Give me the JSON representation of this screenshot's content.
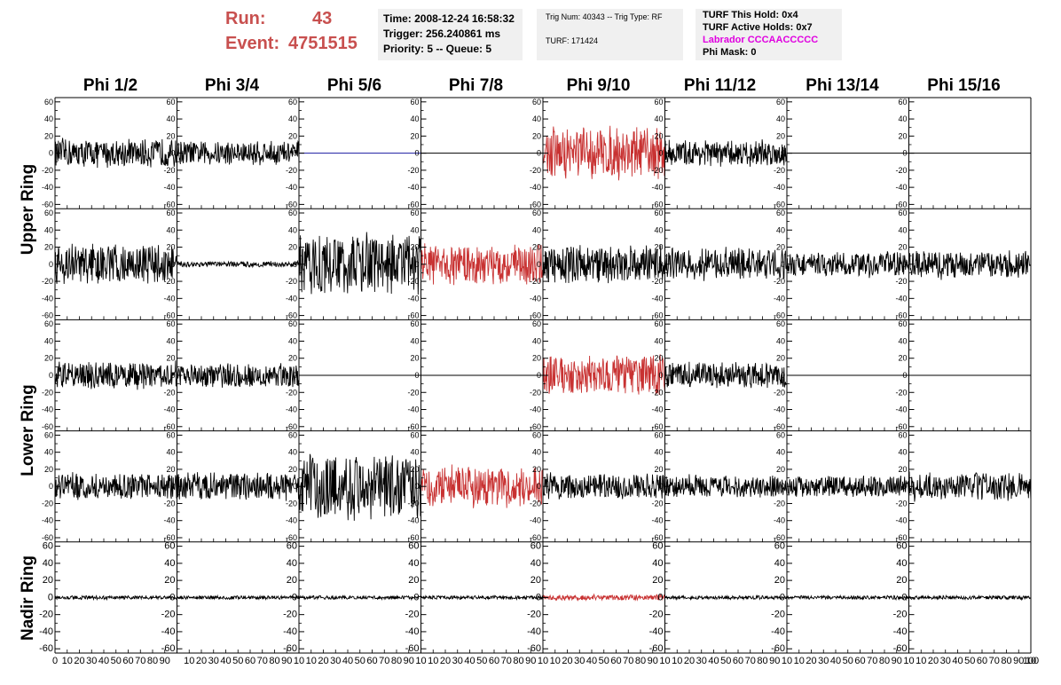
{
  "header": {
    "run_label": "Run:",
    "run_value": "43",
    "event_label": "Event:",
    "event_value": "4751515",
    "time": "Time: 2008-12-24 16:58:32",
    "trigger": "Trigger: 256.240861 ms",
    "priority": "Priority: 5 -- Queue: 5",
    "trig_num": "Trig Num: 40343 -- Trig Type: RF",
    "turf": "TURF: 171424",
    "turf_this_hold": "TURF This Hold: 0x4",
    "turf_active_holds": "TURF Active Holds: 0x7",
    "labrador": "Labrador CCCAACCCCC",
    "phi_mask": "Phi Mask: 0"
  },
  "colors": {
    "run_text": "#c8504f",
    "labrador_text": "#e000e0",
    "trace_normal": "#000000",
    "trace_highlight": "#c83232",
    "trace_flat_blue": "#1a1aa0",
    "panel_bg": "#f0f0f0"
  },
  "columns": [
    "Phi 1/2",
    "Phi 3/4",
    "Phi 5/6",
    "Phi 7/8",
    "Phi 9/10",
    "Phi 11/12",
    "Phi 13/14",
    "Phi 15/16"
  ],
  "row_labels": [
    "Upper Ring",
    "Lower Ring",
    "Nadir Ring"
  ],
  "chart_data": {
    "type": "line",
    "title": "",
    "xlabel": "",
    "ylabel": "",
    "xlim": [
      0,
      100
    ],
    "ylim": [
      -65,
      65
    ],
    "y_ticks": [
      -60,
      -40,
      -20,
      0,
      20,
      40,
      60
    ],
    "x_tick_labels": [
      "0",
      "10",
      "20",
      "30",
      "40",
      "50",
      "60",
      "70",
      "80",
      "90",
      "100"
    ],
    "x_tick_labels_mid": [
      "10",
      "20",
      "30",
      "40",
      "50",
      "60",
      "70",
      "80",
      "90",
      "10"
    ],
    "grid": false,
    "panels": [
      [
        {
          "amp": 15,
          "color": "black"
        },
        {
          "amp": 13,
          "color": "black"
        },
        {
          "amp": 0,
          "color": "blue"
        },
        {
          "amp": 0,
          "color": "black"
        },
        {
          "amp": 27,
          "color": "red"
        },
        {
          "amp": 14,
          "color": "black"
        },
        {
          "amp": 0,
          "color": "black"
        },
        {
          "amp": 0,
          "color": "black"
        }
      ],
      [
        {
          "amp": 22,
          "color": "black"
        },
        {
          "amp": 3,
          "color": "black"
        },
        {
          "amp": 33,
          "color": "black"
        },
        {
          "amp": 22,
          "color": "red"
        },
        {
          "amp": 20,
          "color": "black"
        },
        {
          "amp": 17,
          "color": "black"
        },
        {
          "amp": 13,
          "color": "black"
        },
        {
          "amp": 15,
          "color": "black"
        }
      ],
      [
        {
          "amp": 15,
          "color": "black"
        },
        {
          "amp": 13,
          "color": "black"
        },
        {
          "amp": 0,
          "color": "black"
        },
        {
          "amp": 0,
          "color": "black"
        },
        {
          "amp": 22,
          "color": "red"
        },
        {
          "amp": 14,
          "color": "black"
        },
        {
          "amp": 0,
          "color": "black"
        },
        {
          "amp": 0,
          "color": "black"
        }
      ],
      [
        {
          "amp": 14,
          "color": "black"
        },
        {
          "amp": 15,
          "color": "black"
        },
        {
          "amp": 35,
          "color": "black"
        },
        {
          "amp": 22,
          "color": "red"
        },
        {
          "amp": 14,
          "color": "black"
        },
        {
          "amp": 12,
          "color": "black"
        },
        {
          "amp": 12,
          "color": "black"
        },
        {
          "amp": 15,
          "color": "black"
        }
      ],
      [
        {
          "amp": 2,
          "color": "black"
        },
        {
          "amp": 2,
          "color": "black"
        },
        {
          "amp": 2,
          "color": "black"
        },
        {
          "amp": 2,
          "color": "black"
        },
        {
          "amp": 3,
          "color": "red"
        },
        {
          "amp": 2,
          "color": "black"
        },
        {
          "amp": 2,
          "color": "black"
        },
        {
          "amp": 2,
          "color": "black"
        }
      ]
    ]
  }
}
